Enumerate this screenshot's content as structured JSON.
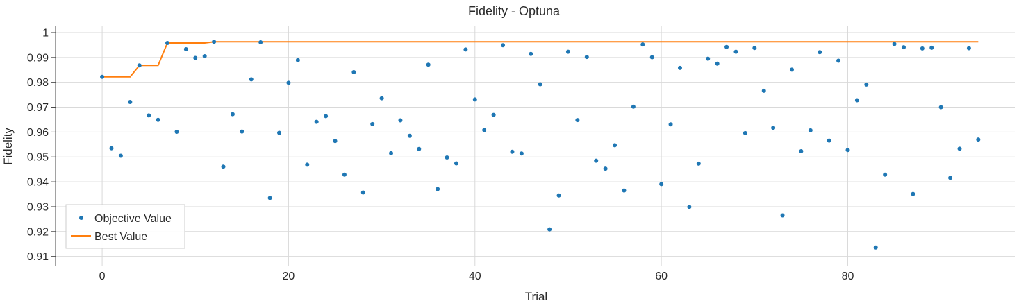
{
  "chart_data": {
    "type": "scatter",
    "title": "Fidelity - Optuna",
    "xlabel": "Trial",
    "ylabel": "Fidelity",
    "xlim": [
      -5,
      98
    ],
    "ylim": [
      0.906,
      1.0025
    ],
    "xticks": [
      0,
      20,
      40,
      60,
      80
    ],
    "yticks": [
      0.91,
      0.92,
      0.93,
      0.94,
      0.95,
      0.96,
      0.97,
      0.98,
      0.99,
      1
    ],
    "ytick_labels": [
      "0.91",
      "0.92",
      "0.93",
      "0.94",
      "0.95",
      "0.96",
      "0.97",
      "0.98",
      "0.99",
      "1"
    ],
    "grid": true,
    "legend_position": "bottom-left",
    "colors": {
      "objective": "#1f77b4",
      "best": "#ff7f0e"
    },
    "series": [
      {
        "name": "Objective Value",
        "kind": "scatter",
        "x": [
          0,
          1,
          2,
          3,
          4,
          5,
          6,
          7,
          8,
          9,
          10,
          11,
          12,
          13,
          14,
          15,
          16,
          17,
          18,
          19,
          20,
          21,
          22,
          23,
          24,
          25,
          26,
          27,
          28,
          29,
          30,
          31,
          32,
          33,
          34,
          35,
          36,
          37,
          38,
          39,
          40,
          41,
          42,
          43,
          44,
          45,
          46,
          47,
          48,
          49,
          50,
          51,
          52,
          53,
          54,
          55,
          56,
          57,
          58,
          59,
          60,
          61,
          62,
          63,
          64,
          65,
          66,
          67,
          68,
          69,
          70,
          71,
          72,
          73,
          74,
          75,
          76,
          77,
          78,
          79,
          80,
          81,
          82,
          83,
          84,
          85,
          86,
          87,
          88,
          89,
          90,
          91,
          92,
          93,
          94
        ],
        "y": [
          0.9822,
          0.9535,
          0.9505,
          0.9721,
          0.9868,
          0.9667,
          0.9649,
          0.9958,
          0.9601,
          0.9933,
          0.9898,
          0.9905,
          0.9963,
          0.9461,
          0.9672,
          0.9602,
          0.9812,
          0.9961,
          0.9335,
          0.9597,
          0.9798,
          0.9889,
          0.9469,
          0.9641,
          0.9664,
          0.9564,
          0.9429,
          0.9841,
          0.9357,
          0.9632,
          0.9736,
          0.9515,
          0.9647,
          0.9585,
          0.9532,
          0.9871,
          0.9371,
          0.9498,
          0.9474,
          0.9932,
          0.9731,
          0.9608,
          0.9669,
          0.9949,
          0.9521,
          0.9514,
          0.9914,
          0.9792,
          0.9209,
          0.9345,
          0.9923,
          0.9648,
          0.9902,
          0.9485,
          0.9453,
          0.9547,
          0.9365,
          0.9702,
          0.9952,
          0.9901,
          0.9391,
          0.9631,
          0.9858,
          0.9299,
          0.9473,
          0.9895,
          0.9875,
          0.9942,
          0.9923,
          0.9596,
          0.9938,
          0.9766,
          0.9617,
          0.9265,
          0.9851,
          0.9523,
          0.9607,
          0.9921,
          0.9566,
          0.9887,
          0.9528,
          0.9728,
          0.9791,
          0.9136,
          0.9429,
          0.9954,
          0.9941,
          0.9351,
          0.9936,
          0.9939,
          0.97,
          0.9416,
          0.9533,
          0.9937,
          0.957
        ]
      },
      {
        "name": "Best Value",
        "kind": "line",
        "x": [
          0,
          1,
          2,
          3,
          4,
          5,
          6,
          7,
          8,
          9,
          10,
          11,
          12,
          13,
          14,
          15,
          16,
          17,
          18,
          19,
          20,
          21,
          22,
          23,
          24,
          25,
          26,
          27,
          28,
          29,
          30,
          31,
          32,
          33,
          34,
          35,
          36,
          37,
          38,
          39,
          40,
          41,
          42,
          43,
          44,
          45,
          46,
          47,
          48,
          49,
          50,
          51,
          52,
          53,
          54,
          55,
          56,
          57,
          58,
          59,
          60,
          61,
          62,
          63,
          64,
          65,
          66,
          67,
          68,
          69,
          70,
          71,
          72,
          73,
          74,
          75,
          76,
          77,
          78,
          79,
          80,
          81,
          82,
          83,
          84,
          85,
          86,
          87,
          88,
          89,
          90,
          91,
          92,
          93,
          94
        ],
        "y": [
          0.9822,
          0.9822,
          0.9822,
          0.9822,
          0.9868,
          0.9868,
          0.9868,
          0.9958,
          0.9958,
          0.9958,
          0.9958,
          0.9958,
          0.9963,
          0.9963,
          0.9963,
          0.9963,
          0.9963,
          0.9963,
          0.9963,
          0.9963,
          0.9963,
          0.9963,
          0.9963,
          0.9963,
          0.9963,
          0.9963,
          0.9963,
          0.9963,
          0.9963,
          0.9963,
          0.9963,
          0.9963,
          0.9963,
          0.9963,
          0.9963,
          0.9963,
          0.9963,
          0.9963,
          0.9963,
          0.9963,
          0.9963,
          0.9963,
          0.9963,
          0.9963,
          0.9963,
          0.9963,
          0.9963,
          0.9963,
          0.9963,
          0.9963,
          0.9963,
          0.9963,
          0.9963,
          0.9963,
          0.9963,
          0.9963,
          0.9963,
          0.9963,
          0.9963,
          0.9963,
          0.9963,
          0.9963,
          0.9963,
          0.9963,
          0.9963,
          0.9963,
          0.9963,
          0.9963,
          0.9963,
          0.9963,
          0.9963,
          0.9963,
          0.9963,
          0.9963,
          0.9963,
          0.9963,
          0.9963,
          0.9963,
          0.9963,
          0.9963,
          0.9963,
          0.9963,
          0.9963,
          0.9963,
          0.9963,
          0.9963,
          0.9963,
          0.9963,
          0.9963,
          0.9963,
          0.9963,
          0.9963,
          0.9963,
          0.9963,
          0.9963
        ]
      }
    ]
  }
}
